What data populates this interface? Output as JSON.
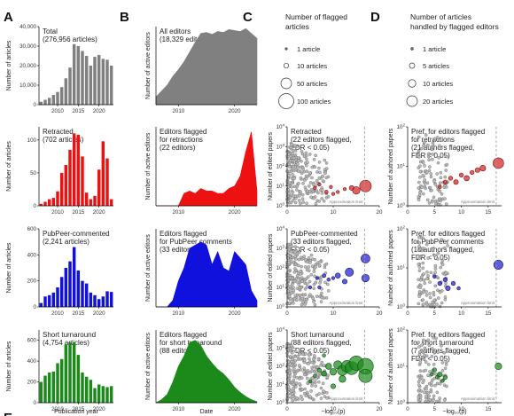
{
  "panels": {
    "A": {
      "letter": "A",
      "xlabel": "Publication year",
      "ylabel": "Number of articles"
    },
    "B": {
      "letter": "B",
      "xlabel": "Date",
      "ylabel": "Number of active editors"
    },
    "C": {
      "letter": "C",
      "xlabel": "−log₁₀(p)",
      "ylabel": "Number of edited papers",
      "approx_label": "Approximation limit"
    },
    "D": {
      "letter": "D",
      "xlabel": "−log₁₀(p)",
      "ylabel": "Number of authored papers",
      "approx_label": "Approximation limit"
    },
    "E": {
      "letter": "E"
    }
  },
  "legend_C": {
    "title_lines": [
      "Number of flagged",
      "articles"
    ],
    "items": [
      {
        "label": "1 article",
        "value": 1
      },
      {
        "label": "10 articles",
        "value": 10
      },
      {
        "label": "50 articles",
        "value": 50
      },
      {
        "label": "100 articles",
        "value": 100
      }
    ]
  },
  "legend_D": {
    "title_lines": [
      "Number of articles",
      "handled by flagged editors"
    ],
    "items": [
      {
        "label": "1 article",
        "value": 1
      },
      {
        "label": "5 articles",
        "value": 5
      },
      {
        "label": "10 articles",
        "value": 10
      },
      {
        "label": "20 articles",
        "value": 20
      }
    ]
  },
  "chart_data": [
    {
      "panel": "A",
      "row": 0,
      "type": "bar",
      "color": "#808080",
      "title_lines": [
        "Total",
        "(276,956 articles)"
      ],
      "ylim": [
        0,
        40000
      ],
      "yticks": [
        "0",
        "10,000",
        "20,000",
        "30,000",
        "40,000"
      ],
      "xticks": [
        "2010",
        "2015",
        "2020"
      ],
      "x": [
        2006,
        2007,
        2008,
        2009,
        2010,
        2011,
        2012,
        2013,
        2014,
        2015,
        2016,
        2017,
        2018,
        2019,
        2020,
        2021,
        2022,
        2023
      ],
      "values": [
        1500,
        2500,
        3500,
        5000,
        6500,
        9000,
        13500,
        19000,
        31000,
        30000,
        27500,
        25000,
        20000,
        24500,
        25500,
        23500,
        23000,
        20000
      ]
    },
    {
      "panel": "A",
      "row": 1,
      "type": "bar",
      "color": "#ee1111",
      "title_lines": [
        "Retracted",
        "(702 articles)"
      ],
      "ylim": [
        0,
        120
      ],
      "yticks": [
        "0",
        "50",
        "100"
      ],
      "xticks": [
        "2010",
        "2015",
        "2020"
      ],
      "x": [
        2006,
        2007,
        2008,
        2009,
        2010,
        2011,
        2012,
        2013,
        2014,
        2015,
        2016,
        2017,
        2018,
        2019,
        2020,
        2021,
        2022,
        2023
      ],
      "values": [
        3,
        6,
        10,
        12,
        22,
        50,
        62,
        85,
        110,
        108,
        75,
        20,
        10,
        15,
        55,
        98,
        72,
        10
      ]
    },
    {
      "panel": "A",
      "row": 2,
      "type": "bar",
      "color": "#1111dd",
      "title_lines": [
        "PubPeer-commented",
        "(2,241 articles)"
      ],
      "ylim": [
        0,
        600
      ],
      "yticks": [
        "0",
        "200",
        "400",
        "600"
      ],
      "xticks": [
        "2010",
        "2015",
        "2020"
      ],
      "x": [
        2006,
        2007,
        2008,
        2009,
        2010,
        2011,
        2012,
        2013,
        2014,
        2015,
        2016,
        2017,
        2018,
        2019,
        2020,
        2021,
        2022,
        2023
      ],
      "values": [
        30,
        80,
        90,
        110,
        150,
        230,
        300,
        350,
        460,
        280,
        200,
        180,
        110,
        90,
        60,
        80,
        120,
        115
      ]
    },
    {
      "panel": "A",
      "row": 3,
      "type": "bar",
      "color": "#1b8a1b",
      "title_lines": [
        "Short turnaround",
        "(4,754 articles)"
      ],
      "ylim": [
        0,
        700
      ],
      "yticks": [
        "0",
        "200",
        "400",
        "600"
      ],
      "xticks": [
        "2010",
        "2015",
        "2020"
      ],
      "x": [
        2006,
        2007,
        2008,
        2009,
        2010,
        2011,
        2012,
        2013,
        2014,
        2015,
        2016,
        2017,
        2018,
        2019,
        2020,
        2021,
        2022,
        2023
      ],
      "values": [
        200,
        260,
        290,
        300,
        380,
        420,
        560,
        580,
        580,
        460,
        290,
        250,
        220,
        140,
        175,
        160,
        150,
        160
      ]
    },
    {
      "panel": "B",
      "row": 0,
      "type": "area",
      "color": "#808080",
      "title_lines": [
        "All editors",
        "(18,329 editors)"
      ],
      "xlim": [
        2006,
        2024
      ],
      "ylim": [
        0,
        4000
      ],
      "xticks": [
        "2010",
        "2020"
      ],
      "x": [
        2006,
        2007,
        2008,
        2009,
        2010,
        2011,
        2012,
        2013,
        2014,
        2015,
        2016,
        2017,
        2018,
        2019,
        2020,
        2021,
        2022,
        2023,
        2024
      ],
      "values": [
        400,
        700,
        1000,
        1450,
        1800,
        2200,
        2700,
        3200,
        3650,
        3700,
        3600,
        3750,
        3700,
        3850,
        3800,
        3750,
        3900,
        3650,
        3400
      ]
    },
    {
      "panel": "B",
      "row": 1,
      "type": "area",
      "color": "#ee1111",
      "title_lines": [
        "Editors flagged",
        "for retractions",
        "(22 editors)"
      ],
      "xlim": [
        2006,
        2024
      ],
      "ylim": [
        0,
        16
      ],
      "xticks": [
        "2010",
        "2020"
      ],
      "x": [
        2006,
        2007,
        2008,
        2009,
        2010,
        2011,
        2012,
        2013,
        2014,
        2015,
        2016,
        2017,
        2018,
        2019,
        2020,
        2021,
        2022,
        2023,
        2024
      ],
      "values": [
        0,
        0,
        0,
        0,
        0,
        2.5,
        3,
        2.5,
        3.5,
        3,
        3,
        2.5,
        2.5,
        3.5,
        4,
        6,
        11,
        15,
        3
      ]
    },
    {
      "panel": "B",
      "row": 2,
      "type": "area",
      "color": "#1111dd",
      "title_lines": [
        "Editors flagged",
        "for PubPeer comments",
        "(33 editors)"
      ],
      "xlim": [
        2006,
        2024
      ],
      "ylim": [
        0,
        24
      ],
      "xticks": [
        "2010",
        "2020"
      ],
      "x": [
        2006,
        2007,
        2008,
        2009,
        2010,
        2011,
        2012,
        2013,
        2014,
        2015,
        2016,
        2017,
        2018,
        2019,
        2020,
        2021,
        2022,
        2023,
        2024
      ],
      "values": [
        0,
        0,
        0,
        2,
        8,
        12,
        18,
        19,
        20,
        19,
        13,
        17,
        12,
        11,
        17,
        15,
        13,
        5,
        2
      ]
    },
    {
      "panel": "B",
      "row": 3,
      "type": "area",
      "color": "#1b8a1b",
      "title_lines": [
        "Editors flagged",
        "for short turnaround",
        "(88 editors)"
      ],
      "xlim": [
        2006,
        2024
      ],
      "ylim": [
        0,
        70
      ],
      "xticks": [
        "2010",
        "2020"
      ],
      "x": [
        2006,
        2007,
        2008,
        2009,
        2010,
        2011,
        2012,
        2013,
        2014,
        2015,
        2016,
        2017,
        2018,
        2019,
        2020,
        2021,
        2022,
        2023,
        2024
      ],
      "values": [
        0,
        3,
        8,
        20,
        35,
        45,
        58,
        60,
        55,
        45,
        38,
        32,
        28,
        22,
        15,
        10,
        6,
        3,
        1
      ]
    },
    {
      "panel": "C",
      "row": 1,
      "type": "scatter",
      "color": "#d42424",
      "title_lines": [
        "Retracted",
        "(22 editors flagged,",
        "FDR < 0.05)"
      ],
      "xlim": [
        0,
        20
      ],
      "ylog": [
        0,
        4
      ],
      "xticks": [
        "0",
        "10",
        "20"
      ],
      "yticks_exp": [
        0,
        1,
        2,
        3,
        4
      ],
      "approx_x": 16.8,
      "points": [
        {
          "x": 6,
          "y": 8,
          "n": 3
        },
        {
          "x": 7,
          "y": 12,
          "n": 4
        },
        {
          "x": 8.5,
          "y": 5,
          "n": 6
        },
        {
          "x": 9.5,
          "y": 9,
          "n": 3
        },
        {
          "x": 10,
          "y": 4,
          "n": 2
        },
        {
          "x": 11,
          "y": 5,
          "n": 4
        },
        {
          "x": 12.5,
          "y": 7,
          "n": 3
        },
        {
          "x": 14,
          "y": 8,
          "n": 10
        },
        {
          "x": 15,
          "y": 6,
          "n": 25
        },
        {
          "x": 17,
          "y": 10,
          "n": 60
        }
      ]
    },
    {
      "panel": "C",
      "row": 2,
      "type": "scatter",
      "color": "#1f1fd0",
      "title_lines": [
        "PubPeer-commented",
        "(33 editors flagged,",
        "FDR < 0.05)"
      ],
      "xlim": [
        0,
        20
      ],
      "ylog": [
        0,
        4
      ],
      "xticks": [
        "0",
        "10",
        "20"
      ],
      "yticks_exp": [
        0,
        1,
        2,
        3,
        4
      ],
      "approx_x": 16.8,
      "points": [
        {
          "x": 6.5,
          "y": 30,
          "n": 3
        },
        {
          "x": 8,
          "y": 40,
          "n": 6
        },
        {
          "x": 9,
          "y": 25,
          "n": 5
        },
        {
          "x": 10,
          "y": 30,
          "n": 4
        },
        {
          "x": 11,
          "y": 40,
          "n": 12
        },
        {
          "x": 12.5,
          "y": 20,
          "n": 10
        },
        {
          "x": 13.5,
          "y": 60,
          "n": 30
        },
        {
          "x": 17,
          "y": 300,
          "n": 35
        },
        {
          "x": 17,
          "y": 30,
          "n": 25
        },
        {
          "x": 5,
          "y": 10,
          "n": 3
        },
        {
          "x": 7,
          "y": 10,
          "n": 2
        }
      ]
    },
    {
      "panel": "C",
      "row": 3,
      "type": "scatter",
      "color": "#1b8a1b",
      "title_lines": [
        "Short turnaround",
        "(88 editors flagged,",
        "FDR < 0.05)"
      ],
      "xlim": [
        0,
        20
      ],
      "ylog": [
        0,
        4
      ],
      "xticks": [
        "0",
        "10",
        "20"
      ],
      "yticks_exp": [
        0,
        1,
        2,
        3,
        4
      ],
      "approx_x": 16.8,
      "points": [
        {
          "x": 6,
          "y": 30,
          "n": 4
        },
        {
          "x": 7,
          "y": 60,
          "n": 8
        },
        {
          "x": 8,
          "y": 40,
          "n": 12
        },
        {
          "x": 8,
          "y": 400,
          "n": 5
        },
        {
          "x": 9,
          "y": 100,
          "n": 16
        },
        {
          "x": 10,
          "y": 50,
          "n": 20
        },
        {
          "x": 11,
          "y": 120,
          "n": 30
        },
        {
          "x": 12,
          "y": 60,
          "n": 45
        },
        {
          "x": 13,
          "y": 100,
          "n": 60
        },
        {
          "x": 14,
          "y": 80,
          "n": 75
        },
        {
          "x": 15,
          "y": 150,
          "n": 90
        },
        {
          "x": 17,
          "y": 100,
          "n": 110
        },
        {
          "x": 17,
          "y": 30,
          "n": 80
        },
        {
          "x": 10,
          "y": 8,
          "n": 10
        },
        {
          "x": 12,
          "y": 20,
          "n": 20
        },
        {
          "x": 5,
          "y": 15,
          "n": 3
        }
      ]
    },
    {
      "panel": "D",
      "row": 1,
      "type": "scatter",
      "color": "#d42424",
      "title_lines": [
        "Pref. for editors flagged",
        "for retractions",
        "(21 authors flagged,",
        "FDR < 0.05)"
      ],
      "xlim": [
        0,
        17.5
      ],
      "ylog": [
        0,
        2
      ],
      "xticks": [
        "0",
        "5",
        "10",
        "15"
      ],
      "yticks_exp": [
        0,
        1,
        2
      ],
      "approx_x": 16.5,
      "points": [
        {
          "x": 6,
          "y": 3,
          "n": 2
        },
        {
          "x": 7,
          "y": 4,
          "n": 3
        },
        {
          "x": 8,
          "y": 5,
          "n": 3
        },
        {
          "x": 9,
          "y": 4,
          "n": 4
        },
        {
          "x": 10,
          "y": 6,
          "n": 3
        },
        {
          "x": 11,
          "y": 5,
          "n": 5
        },
        {
          "x": 12,
          "y": 7,
          "n": 3
        },
        {
          "x": 13,
          "y": 8,
          "n": 4
        },
        {
          "x": 14,
          "y": 9,
          "n": 6
        },
        {
          "x": 16.9,
          "y": 12,
          "n": 20
        }
      ]
    },
    {
      "panel": "D",
      "row": 2,
      "type": "scatter",
      "color": "#1f1fd0",
      "title_lines": [
        "Pref. for editors flagged",
        "for PubPeer comments",
        "(18 authors flagged,",
        "FDR < 0.05)"
      ],
      "xlim": [
        0,
        17.5
      ],
      "ylog": [
        0,
        2
      ],
      "xticks": [
        "0",
        "5",
        "10",
        "15"
      ],
      "yticks_exp": [
        0,
        1,
        2
      ],
      "approx_x": 16.5,
      "points": [
        {
          "x": 5,
          "y": 6,
          "n": 2
        },
        {
          "x": 6,
          "y": 4,
          "n": 3
        },
        {
          "x": 7,
          "y": 5,
          "n": 3
        },
        {
          "x": 7.5,
          "y": 3,
          "n": 4
        },
        {
          "x": 8.5,
          "y": 4,
          "n": 3
        },
        {
          "x": 9.5,
          "y": 3,
          "n": 2
        },
        {
          "x": 16.9,
          "y": 12,
          "n": 15
        }
      ]
    },
    {
      "panel": "D",
      "row": 3,
      "type": "scatter",
      "color": "#1b8a1b",
      "title_lines": [
        "Pref. for editors flagged",
        "for short turnaround",
        "(7 authors flagged,",
        "FDR < 0.05)"
      ],
      "xlim": [
        0,
        17.5
      ],
      "ylog": [
        0,
        2
      ],
      "xticks": [
        "0",
        "5",
        "10",
        "15"
      ],
      "yticks_exp": [
        0,
        1,
        2
      ],
      "approx_x": 16.5,
      "points": [
        {
          "x": 4.5,
          "y": 6,
          "n": 2
        },
        {
          "x": 5,
          "y": 8,
          "n": 3
        },
        {
          "x": 5.5,
          "y": 5,
          "n": 2
        },
        {
          "x": 6,
          "y": 6,
          "n": 4
        },
        {
          "x": 6.5,
          "y": 4,
          "n": 2
        },
        {
          "x": 7,
          "y": 5,
          "n": 3
        },
        {
          "x": 16.9,
          "y": 10,
          "n": 8
        }
      ]
    }
  ]
}
